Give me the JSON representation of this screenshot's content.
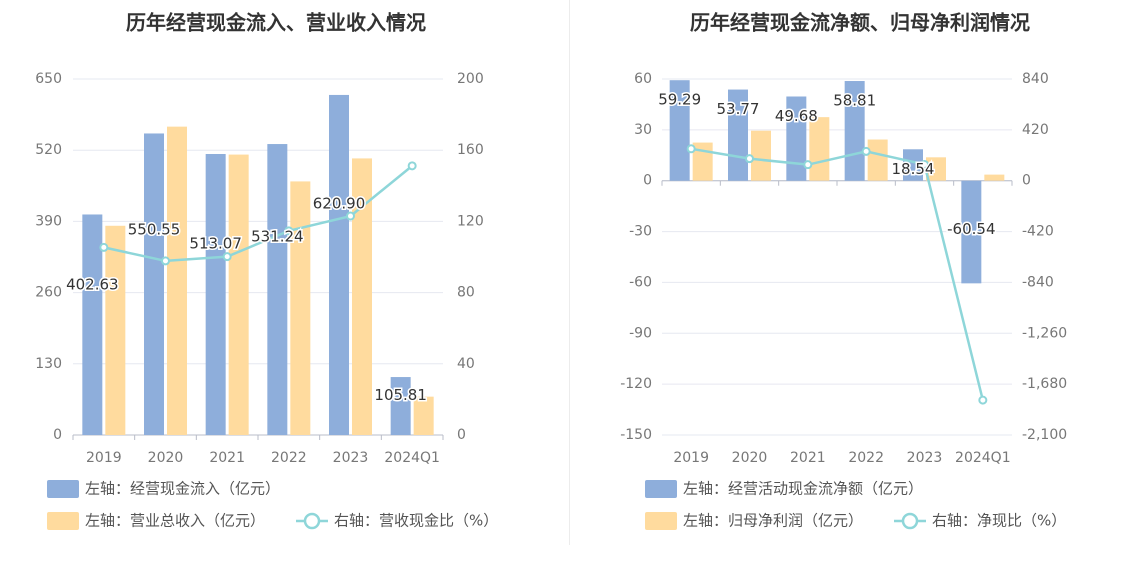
{
  "chart_data": [
    {
      "type": "bar",
      "title": "历年经营现金流入、营业收入情况",
      "categories": [
        "2019",
        "2020",
        "2021",
        "2022",
        "2023",
        "2024Q1"
      ],
      "left_axis": {
        "ticks": [
          "0",
          "130",
          "260",
          "390",
          "520",
          "650"
        ],
        "range": [
          0,
          650
        ]
      },
      "right_axis": {
        "ticks": [
          "0",
          "40",
          "80",
          "120",
          "160",
          "200"
        ],
        "range": [
          0,
          200
        ]
      },
      "series": [
        {
          "name": "左轴：经营现金流入（亿元）",
          "kind": "bar",
          "axis": "left",
          "color": "#8eaedb",
          "values": [
            402.63,
            550.55,
            513.07,
            531.24,
            620.9,
            105.81
          ],
          "labels": [
            "402.63",
            "550.55",
            "513.07",
            "531.24",
            "620.90",
            "105.81"
          ]
        },
        {
          "name": "左轴：营业总收入（亿元）",
          "kind": "bar",
          "axis": "left",
          "color": "#ffdb9e",
          "values": [
            382,
            563,
            512,
            463,
            505,
            70
          ]
        },
        {
          "name": "右轴：营收现金比（%）",
          "kind": "line",
          "axis": "right",
          "color": "#8ed6d9",
          "values": [
            105.4,
            97.8,
            100.2,
            114.7,
            123.0,
            151.2
          ]
        }
      ]
    },
    {
      "type": "bar",
      "title": "历年经营现金流净额、归母净利润情况",
      "categories": [
        "2019",
        "2020",
        "2021",
        "2022",
        "2023",
        "2024Q1"
      ],
      "left_axis": {
        "ticks": [
          "-150",
          "-120",
          "-90",
          "-60",
          "-30",
          "0",
          "30",
          "60"
        ],
        "range": [
          -150,
          60
        ]
      },
      "right_axis": {
        "ticks": [
          "-2,100",
          "-1,680",
          "-1,260",
          "-840",
          "-420",
          "0",
          "420",
          "840"
        ],
        "range": [
          -2100,
          840
        ]
      },
      "series": [
        {
          "name": "左轴：经营活动现金流净额（亿元）",
          "kind": "bar",
          "axis": "left",
          "color": "#8eaedb",
          "values": [
            59.29,
            53.77,
            49.68,
            58.81,
            18.54,
            -60.54
          ],
          "labels": [
            "59.29",
            "53.77",
            "49.68",
            "58.81",
            "18.54",
            "-60.54"
          ]
        },
        {
          "name": "左轴：归母净利润（亿元）",
          "kind": "bar",
          "axis": "left",
          "color": "#ffdb9e",
          "values": [
            22.5,
            29.5,
            37.5,
            24.3,
            13.8,
            3.6
          ]
        },
        {
          "name": "右轴：净现比（%）",
          "kind": "line",
          "axis": "right",
          "color": "#8ed6d9",
          "values": [
            263.5,
            182.3,
            132.5,
            242.0,
            134.3,
            -1812
          ]
        }
      ]
    }
  ]
}
